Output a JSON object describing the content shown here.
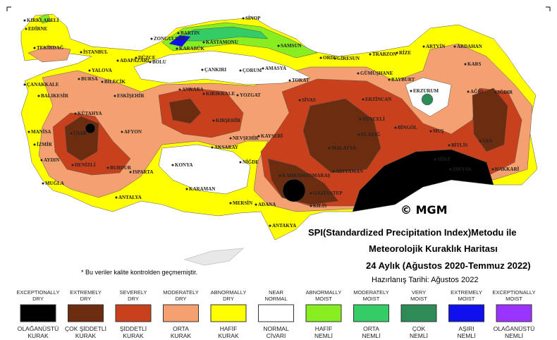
{
  "title": {
    "line1": "SPI(Standardized Precipitation Index)Metodu ile",
    "line2": "Meteorolojik Kuraklık Haritası",
    "line3": "24 Aylık (Ağustos 2020-Temmuz 2022)",
    "date": "Hazırlanış Tarihi: Ağustos 2022"
  },
  "copyright": "© MGM",
  "note": "* Bu veriler kalite kontrolden geçmemiştir.",
  "legend": [
    {
      "en": [
        "EXCEPTIONALLY",
        "DRY"
      ],
      "tr": [
        "OLAĞANÜSTÜ",
        "KURAK"
      ],
      "color": "#000000"
    },
    {
      "en": [
        "EXTREMELY",
        "DRY"
      ],
      "tr": [
        "ÇOK ŞİDDETLİ",
        "KURAK"
      ],
      "color": "#6b2c10"
    },
    {
      "en": [
        "SEVERELY",
        "DRY"
      ],
      "tr": [
        "ŞİDDETLİ",
        "KURAK"
      ],
      "color": "#c8401c"
    },
    {
      "en": [
        "MODERATELY",
        "DRY"
      ],
      "tr": [
        "ORTA",
        "KURAK"
      ],
      "color": "#f5a070"
    },
    {
      "en": [
        "ABNORMALLY",
        "DRY"
      ],
      "tr": [
        "HAFİF",
        "KURAK"
      ],
      "color": "#ffff00"
    },
    {
      "en": [
        "NEAR",
        "NORMAL"
      ],
      "tr": [
        "NORMAL",
        "CİVARI"
      ],
      "color": "#ffffff"
    },
    {
      "en": [
        "ABNORMALLY",
        "MOIST"
      ],
      "tr": [
        "HAFİF",
        "NEMLİ"
      ],
      "color": "#88ee22"
    },
    {
      "en": [
        "MODERATELY",
        "MOIST"
      ],
      "tr": [
        "ORTA",
        "NEMLİ"
      ],
      "color": "#33cc66"
    },
    {
      "en": [
        "VERY",
        "MOIST"
      ],
      "tr": [
        "ÇOK",
        "NEMLİ"
      ],
      "color": "#2e8b57"
    },
    {
      "en": [
        "EXTREMELY",
        "MOIST"
      ],
      "tr": [
        "AŞIRI",
        "NEMLİ"
      ],
      "color": "#1010ee"
    },
    {
      "en": [
        "EXCEPTIONALLY",
        "MOIST"
      ],
      "tr": [
        "OLAĞANÜSTÜ",
        "NEMLİ"
      ],
      "color": "#9933ff"
    }
  ],
  "cities": [
    "KIRKLARELİ",
    "EDİRNE",
    "TEKİRDAĞ",
    "İSTANBUL",
    "ÇANAKKALE",
    "BALIKESİR",
    "YALOVA",
    "BURSA",
    "BİLECİK",
    "ADAPAZARI",
    "DÜZCE",
    "BOLU",
    "BARTIN",
    "ZONGULDAK",
    "KARABÜK",
    "KASTAMONU",
    "SİNOP",
    "SAMSUN",
    "ORDU",
    "GİRESUN",
    "TRABZON",
    "RİZE",
    "ARTVİN",
    "ARDAHAN",
    "KARS",
    "GÜMÜŞHANE",
    "BAYBURT",
    "ERZURUM",
    "AĞRI",
    "IĞDIR",
    "ERZİNCAN",
    "TOKAT",
    "AMASYA",
    "ÇORUM",
    "ÇANKIRI",
    "ANKARA",
    "KIRIKKALE",
    "YOZGAT",
    "SİVAS",
    "ESKİŞEHİR",
    "KÜTAHYA",
    "AFYON",
    "MANİSA",
    "UŞAK",
    "İZMİR",
    "AYDIN",
    "DENİZLİ",
    "MUĞLA",
    "BURDUR",
    "ISPARTA",
    "ANTALYA",
    "KONYA",
    "KARAMAN",
    "MERSİN",
    "ADANA",
    "NİĞDE",
    "AKSARAY",
    "NEVŞEHİR",
    "KIRŞEHİR",
    "KAYSERİ",
    "KAHRAMANMARAŞ",
    "GAZİANTEP",
    "KİLİS",
    "ADIYAMAN",
    "MALATYA",
    "ELAZIĞ",
    "TUNCELİ",
    "BİNGÖL",
    "MUŞ",
    "BİTLİS",
    "VAN",
    "HAKKARİ",
    "ŞIRNAK",
    "SİİRT",
    "ANTAKYA"
  ]
}
